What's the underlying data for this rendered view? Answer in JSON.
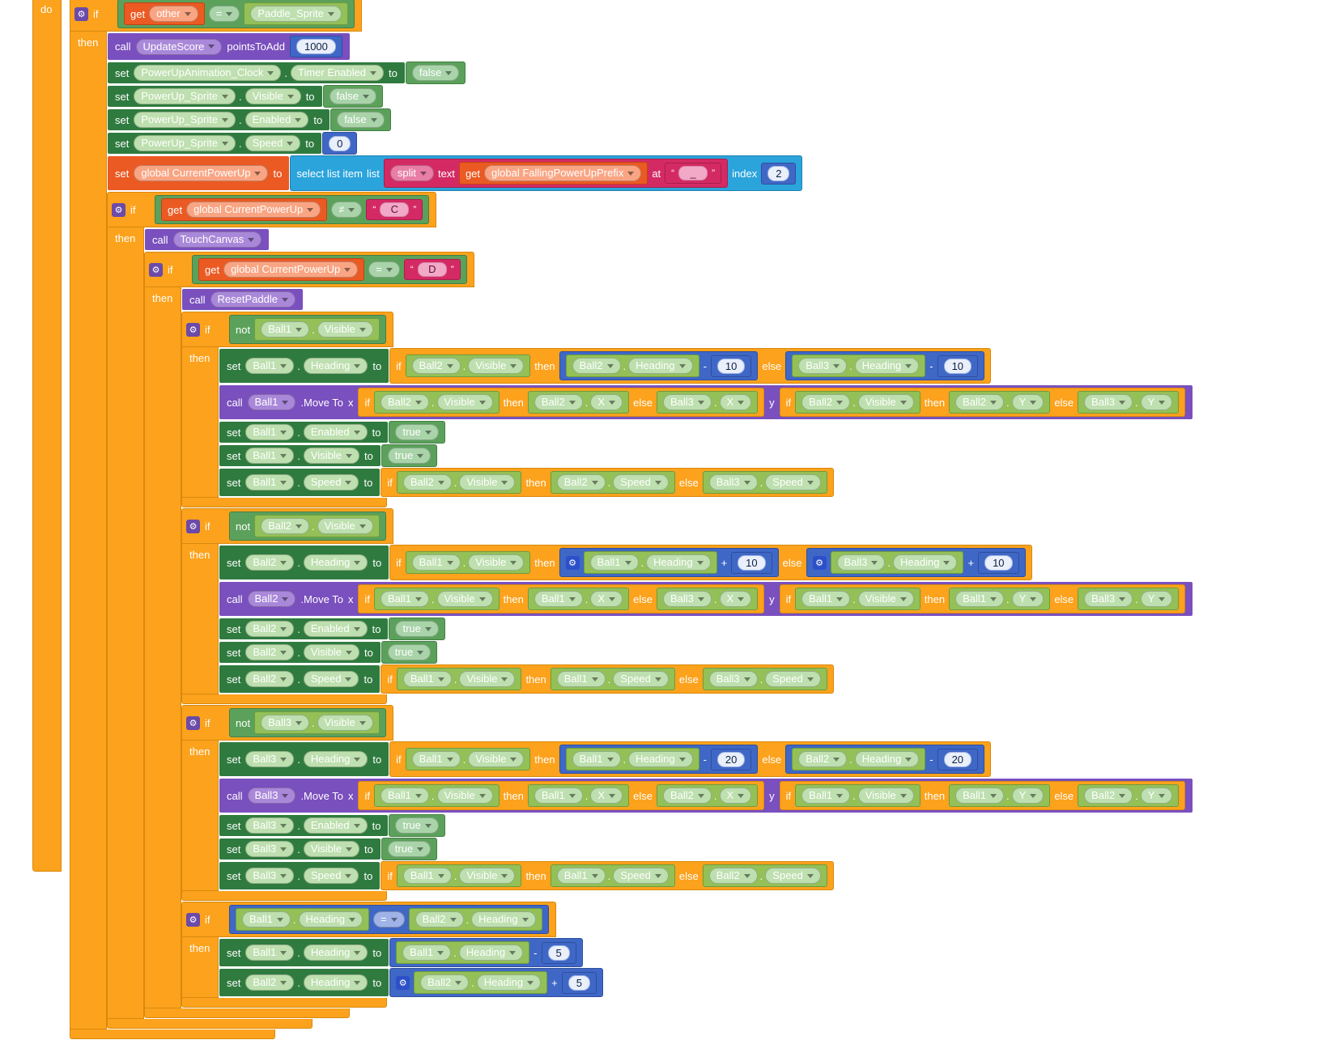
{
  "workspace": {
    "do_label": "do",
    "colors": {
      "control": "#FCA21C",
      "logic": "#5BA15B",
      "math": "#3F67C6",
      "text": "#D42A64",
      "lists": "#2BA4DC",
      "variables": "#EB5A23",
      "procedures": "#7A4FBE",
      "component_set": "#2F7B3F",
      "component_get": "#93C057"
    },
    "root_if": {
      "type": "if",
      "cond": {
        "type": "cmp",
        "frame": "logic",
        "op": "=",
        "left": {
          "type": "varget",
          "label": "other"
        },
        "right": {
          "type": "dd",
          "label": "Paddle_Sprite"
        }
      },
      "then": [
        {
          "type": "call",
          "proc": "UpdateScore",
          "args": [
            {
              "label": "pointsToAdd",
              "value": {
                "type": "num",
                "v": "1000"
              }
            }
          ]
        },
        {
          "type": "setprop",
          "comp": "PowerUpAnimation_Clock",
          "prop": "Timer Enabled",
          "value": {
            "type": "bool",
            "v": "false"
          }
        },
        {
          "type": "setprop",
          "comp": "PowerUp_Sprite",
          "prop": "Visible",
          "value": {
            "type": "bool",
            "v": "false"
          }
        },
        {
          "type": "setprop",
          "comp": "PowerUp_Sprite",
          "prop": "Enabled",
          "value": {
            "type": "bool",
            "v": "false"
          }
        },
        {
          "type": "setprop",
          "comp": "PowerUp_Sprite",
          "prop": "Speed",
          "value": {
            "type": "num",
            "v": "0"
          }
        },
        {
          "type": "setvar",
          "name": "global CurrentPowerUp",
          "value": {
            "type": "selectlist",
            "list": {
              "type": "split",
              "op": "split",
              "text": {
                "type": "varget",
                "label": "global FallingPowerUpPrefix"
              },
              "at": {
                "type": "str",
                "v": "_"
              }
            },
            "index": {
              "type": "num",
              "v": "2"
            }
          }
        },
        {
          "type": "if",
          "cond": {
            "type": "cmp",
            "frame": "logic",
            "op": "≠",
            "left": {
              "type": "varget",
              "label": "global CurrentPowerUp"
            },
            "right": {
              "type": "str",
              "v": "C"
            }
          },
          "then": [
            {
              "type": "call",
              "proc": "TouchCanvas",
              "args": []
            },
            {
              "type": "if",
              "cond": {
                "type": "cmp",
                "frame": "logic",
                "op": "=",
                "left": {
                  "type": "varget",
                  "label": "global CurrentPowerUp"
                },
                "right": {
                  "type": "str",
                  "v": "D"
                }
              },
              "then": [
                {
                  "type": "call",
                  "proc": "ResetPaddle",
                  "args": []
                },
                {
                  "type": "if",
                  "cond": {
                    "type": "not",
                    "e": {
                      "type": "prop",
                      "comp": "Ball1",
                      "prop": "Visible"
                    }
                  },
                  "then": [
                    {
                      "type": "setprop",
                      "comp": "Ball1",
                      "prop": "Heading",
                      "value": {
                        "type": "ifexpr",
                        "cond": {
                          "type": "prop",
                          "comp": "Ball2",
                          "prop": "Visible"
                        },
                        "then": {
                          "type": "math",
                          "op": "-",
                          "gear": false,
                          "left": {
                            "type": "prop",
                            "comp": "Ball2",
                            "prop": "Heading"
                          },
                          "right": {
                            "type": "num",
                            "v": "10"
                          }
                        },
                        "else": {
                          "type": "math",
                          "op": "-",
                          "gear": false,
                          "left": {
                            "type": "prop",
                            "comp": "Ball3",
                            "prop": "Heading"
                          },
                          "right": {
                            "type": "num",
                            "v": "10"
                          }
                        }
                      }
                    },
                    {
                      "type": "movecall",
                      "comp": "Ball1",
                      "method": ".Move To",
                      "x": {
                        "type": "ifexpr",
                        "cond": {
                          "type": "prop",
                          "comp": "Ball2",
                          "prop": "Visible"
                        },
                        "then": {
                          "type": "prop",
                          "comp": "Ball2",
                          "prop": "X"
                        },
                        "else": {
                          "type": "prop",
                          "comp": "Ball3",
                          "prop": "X"
                        }
                      },
                      "y": {
                        "type": "ifexpr",
                        "cond": {
                          "type": "prop",
                          "comp": "Ball2",
                          "prop": "Visible"
                        },
                        "then": {
                          "type": "prop",
                          "comp": "Ball2",
                          "prop": "Y"
                        },
                        "else": {
                          "type": "prop",
                          "comp": "Ball3",
                          "prop": "Y"
                        }
                      }
                    },
                    {
                      "type": "setprop",
                      "comp": "Ball1",
                      "prop": "Enabled",
                      "value": {
                        "type": "bool",
                        "v": "true"
                      }
                    },
                    {
                      "type": "setprop",
                      "comp": "Ball1",
                      "prop": "Visible",
                      "value": {
                        "type": "bool",
                        "v": "true"
                      }
                    },
                    {
                      "type": "setprop",
                      "comp": "Ball1",
                      "prop": "Speed",
                      "value": {
                        "type": "ifexpr",
                        "cond": {
                          "type": "prop",
                          "comp": "Ball2",
                          "prop": "Visible"
                        },
                        "then": {
                          "type": "prop",
                          "comp": "Ball2",
                          "prop": "Speed"
                        },
                        "else": {
                          "type": "prop",
                          "comp": "Ball3",
                          "prop": "Speed"
                        }
                      }
                    }
                  ]
                },
                {
                  "type": "if",
                  "cond": {
                    "type": "not",
                    "e": {
                      "type": "prop",
                      "comp": "Ball2",
                      "prop": "Visible"
                    }
                  },
                  "then": [
                    {
                      "type": "setprop",
                      "comp": "Ball2",
                      "prop": "Heading",
                      "value": {
                        "type": "ifexpr",
                        "cond": {
                          "type": "prop",
                          "comp": "Ball1",
                          "prop": "Visible"
                        },
                        "then": {
                          "type": "math",
                          "op": "+",
                          "gear": true,
                          "left": {
                            "type": "prop",
                            "comp": "Ball1",
                            "prop": "Heading"
                          },
                          "right": {
                            "type": "num",
                            "v": "10"
                          }
                        },
                        "else": {
                          "type": "math",
                          "op": "+",
                          "gear": true,
                          "left": {
                            "type": "prop",
                            "comp": "Ball3",
                            "prop": "Heading"
                          },
                          "right": {
                            "type": "num",
                            "v": "10"
                          }
                        }
                      }
                    },
                    {
                      "type": "movecall",
                      "comp": "Ball2",
                      "method": ".Move To",
                      "x": {
                        "type": "ifexpr",
                        "cond": {
                          "type": "prop",
                          "comp": "Ball1",
                          "prop": "Visible"
                        },
                        "then": {
                          "type": "prop",
                          "comp": "Ball1",
                          "prop": "X"
                        },
                        "else": {
                          "type": "prop",
                          "comp": "Ball3",
                          "prop": "X"
                        }
                      },
                      "y": {
                        "type": "ifexpr",
                        "cond": {
                          "type": "prop",
                          "comp": "Ball1",
                          "prop": "Visible"
                        },
                        "then": {
                          "type": "prop",
                          "comp": "Ball1",
                          "prop": "Y"
                        },
                        "else": {
                          "type": "prop",
                          "comp": "Ball3",
                          "prop": "Y"
                        }
                      }
                    },
                    {
                      "type": "setprop",
                      "comp": "Ball2",
                      "prop": "Enabled",
                      "value": {
                        "type": "bool",
                        "v": "true"
                      }
                    },
                    {
                      "type": "setprop",
                      "comp": "Ball2",
                      "prop": "Visible",
                      "value": {
                        "type": "bool",
                        "v": "true"
                      }
                    },
                    {
                      "type": "setprop",
                      "comp": "Ball2",
                      "prop": "Speed",
                      "value": {
                        "type": "ifexpr",
                        "cond": {
                          "type": "prop",
                          "comp": "Ball1",
                          "prop": "Visible"
                        },
                        "then": {
                          "type": "prop",
                          "comp": "Ball1",
                          "prop": "Speed"
                        },
                        "else": {
                          "type": "prop",
                          "comp": "Ball3",
                          "prop": "Speed"
                        }
                      }
                    }
                  ]
                },
                {
                  "type": "if",
                  "cond": {
                    "type": "not",
                    "e": {
                      "type": "prop",
                      "comp": "Ball3",
                      "prop": "Visible"
                    }
                  },
                  "then": [
                    {
                      "type": "setprop",
                      "comp": "Ball3",
                      "prop": "Heading",
                      "value": {
                        "type": "ifexpr",
                        "cond": {
                          "type": "prop",
                          "comp": "Ball1",
                          "prop": "Visible"
                        },
                        "then": {
                          "type": "math",
                          "op": "-",
                          "gear": false,
                          "left": {
                            "type": "prop",
                            "comp": "Ball1",
                            "prop": "Heading"
                          },
                          "right": {
                            "type": "num",
                            "v": "20"
                          }
                        },
                        "else": {
                          "type": "math",
                          "op": "-",
                          "gear": false,
                          "left": {
                            "type": "prop",
                            "comp": "Ball2",
                            "prop": "Heading"
                          },
                          "right": {
                            "type": "num",
                            "v": "20"
                          }
                        }
                      }
                    },
                    {
                      "type": "movecall",
                      "comp": "Ball3",
                      "method": ".Move To",
                      "x": {
                        "type": "ifexpr",
                        "cond": {
                          "type": "prop",
                          "comp": "Ball1",
                          "prop": "Visible"
                        },
                        "then": {
                          "type": "prop",
                          "comp": "Ball1",
                          "prop": "X"
                        },
                        "else": {
                          "type": "prop",
                          "comp": "Ball2",
                          "prop": "X"
                        }
                      },
                      "y": {
                        "type": "ifexpr",
                        "cond": {
                          "type": "prop",
                          "comp": "Ball1",
                          "prop": "Visible"
                        },
                        "then": {
                          "type": "prop",
                          "comp": "Ball1",
                          "prop": "Y"
                        },
                        "else": {
                          "type": "prop",
                          "comp": "Ball2",
                          "prop": "Y"
                        }
                      }
                    },
                    {
                      "type": "setprop",
                      "comp": "Ball3",
                      "prop": "Enabled",
                      "value": {
                        "type": "bool",
                        "v": "true"
                      }
                    },
                    {
                      "type": "setprop",
                      "comp": "Ball3",
                      "prop": "Visible",
                      "value": {
                        "type": "bool",
                        "v": "true"
                      }
                    },
                    {
                      "type": "setprop",
                      "comp": "Ball3",
                      "prop": "Speed",
                      "value": {
                        "type": "ifexpr",
                        "cond": {
                          "type": "prop",
                          "comp": "Ball1",
                          "prop": "Visible"
                        },
                        "then": {
                          "type": "prop",
                          "comp": "Ball1",
                          "prop": "Speed"
                        },
                        "else": {
                          "type": "prop",
                          "comp": "Ball2",
                          "prop": "Speed"
                        }
                      }
                    }
                  ]
                },
                {
                  "type": "if",
                  "cond": {
                    "type": "cmp",
                    "frame": "math",
                    "op": "=",
                    "left": {
                      "type": "prop",
                      "comp": "Ball1",
                      "prop": "Heading"
                    },
                    "right": {
                      "type": "prop",
                      "comp": "Ball2",
                      "prop": "Heading"
                    }
                  },
                  "then": [
                    {
                      "type": "setprop",
                      "comp": "Ball1",
                      "prop": "Heading",
                      "value": {
                        "type": "math",
                        "op": "-",
                        "gear": false,
                        "left": {
                          "type": "prop",
                          "comp": "Ball1",
                          "prop": "Heading"
                        },
                        "right": {
                          "type": "num",
                          "v": "5"
                        }
                      }
                    },
                    {
                      "type": "setprop",
                      "comp": "Ball2",
                      "prop": "Heading",
                      "value": {
                        "type": "math",
                        "op": "+",
                        "gear": true,
                        "left": {
                          "type": "prop",
                          "comp": "Ball2",
                          "prop": "Heading"
                        },
                        "right": {
                          "type": "num",
                          "v": "5"
                        }
                      }
                    }
                  ]
                }
              ]
            }
          ]
        }
      ]
    }
  }
}
